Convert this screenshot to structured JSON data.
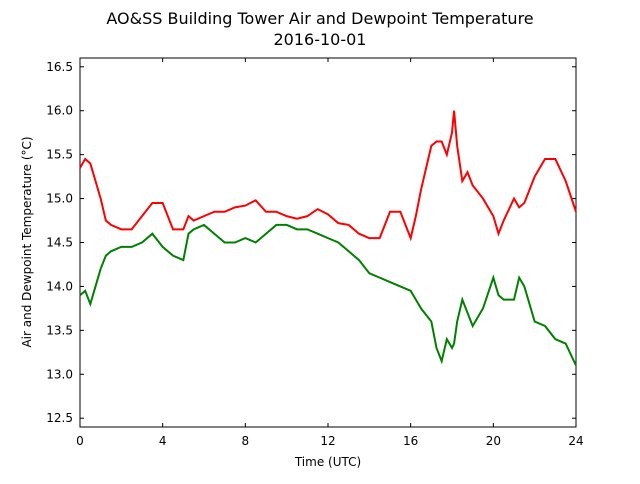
{
  "chart_data": {
    "type": "line",
    "title": "AO&SS Building Tower Air and Dewpoint Temperature",
    "subtitle": "2016-10-01",
    "x_label": "Time (UTC)",
    "y_label": "Air and Dewpoint Temperature (°C)",
    "x": [
      0,
      0.25,
      0.5,
      0.75,
      1,
      1.25,
      1.5,
      2,
      2.5,
      3,
      3.5,
      4,
      4.5,
      5,
      5.25,
      5.5,
      6,
      6.5,
      7,
      7.5,
      8,
      8.5,
      9,
      9.5,
      10,
      10.5,
      11,
      11.5,
      12,
      12.5,
      13,
      13.5,
      14,
      14.5,
      15,
      15.5,
      16,
      16.25,
      16.5,
      17,
      17.25,
      17.5,
      17.75,
      18,
      18.1,
      18.25,
      18.5,
      18.75,
      19,
      19.5,
      20,
      20.25,
      20.5,
      21,
      21.25,
      21.5,
      22,
      22.5,
      23,
      23.5,
      24
    ],
    "series": [
      {
        "color": "#ff0000",
        "values": [
          15.35,
          15.45,
          15.4,
          15.2,
          15.0,
          14.75,
          14.7,
          14.65,
          14.65,
          14.8,
          14.95,
          14.95,
          14.65,
          14.65,
          14.8,
          14.75,
          14.8,
          14.85,
          14.85,
          14.9,
          14.92,
          14.98,
          14.85,
          14.85,
          14.8,
          14.77,
          14.8,
          14.88,
          14.82,
          14.72,
          14.7,
          14.6,
          14.55,
          14.55,
          14.85,
          14.85,
          14.55,
          14.8,
          15.1,
          15.6,
          15.65,
          15.65,
          15.5,
          15.75,
          16.0,
          15.6,
          15.2,
          15.3,
          15.15,
          15.0,
          14.8,
          14.6,
          14.75,
          15.0,
          14.9,
          14.95,
          15.25,
          15.45,
          15.45,
          15.2,
          14.85
        ]
      },
      {
        "color": "#008000",
        "values": [
          13.9,
          13.95,
          13.8,
          14.0,
          14.2,
          14.35,
          14.4,
          14.45,
          14.45,
          14.5,
          14.6,
          14.45,
          14.35,
          14.3,
          14.6,
          14.65,
          14.7,
          14.6,
          14.5,
          14.5,
          14.55,
          14.5,
          14.6,
          14.7,
          14.7,
          14.65,
          14.65,
          14.6,
          14.55,
          14.5,
          14.4,
          14.3,
          14.15,
          14.1,
          14.05,
          14.0,
          13.95,
          13.85,
          13.75,
          13.6,
          13.3,
          13.15,
          13.4,
          13.3,
          13.35,
          13.6,
          13.85,
          13.7,
          13.55,
          13.75,
          14.1,
          13.9,
          13.85,
          13.85,
          14.1,
          14.0,
          13.6,
          13.55,
          13.4,
          13.35,
          13.1
        ]
      }
    ],
    "xlim": [
      0,
      24
    ],
    "xticks": [
      0,
      4,
      8,
      12,
      16,
      20,
      24
    ],
    "ylim": [
      12.4,
      16.6
    ],
    "yticks": [
      12.5,
      {
        "value": 13,
        "label": "13.0"
      },
      13.5,
      {
        "value": 14,
        "label": "14.0"
      },
      14.5,
      {
        "value": 15,
        "label": "15.0"
      },
      15.5,
      {
        "value": 16,
        "label": "16.0"
      },
      16.5
    ]
  }
}
